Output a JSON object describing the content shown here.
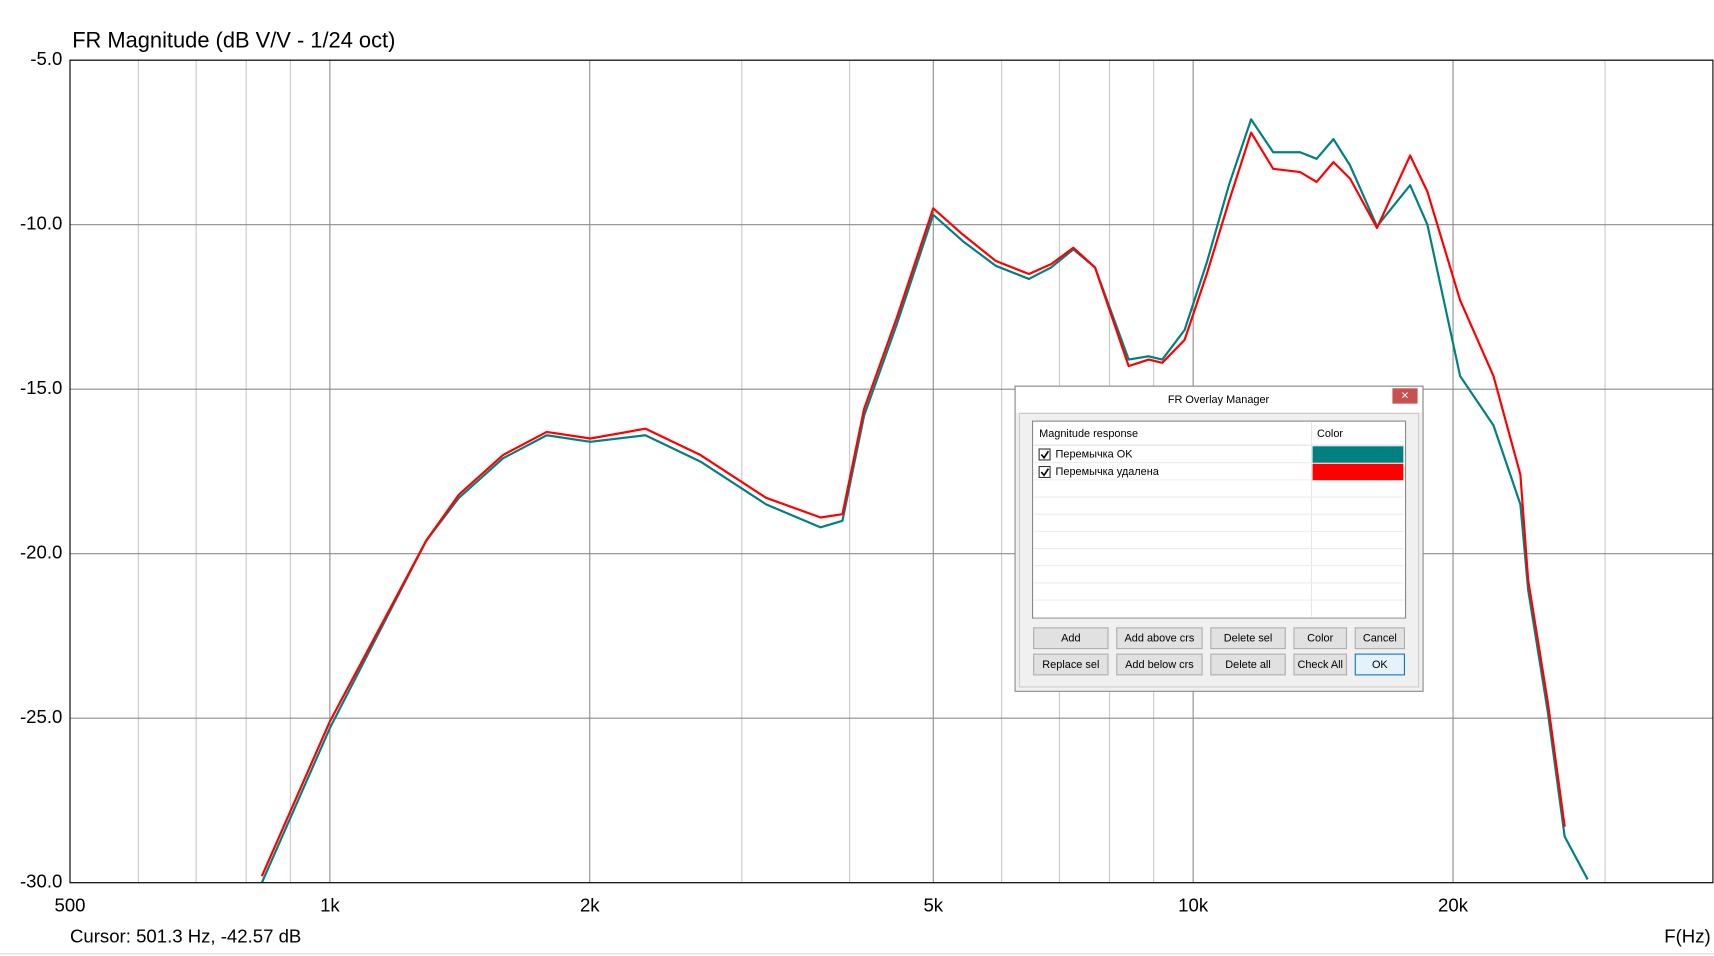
{
  "chart_data": {
    "type": "line",
    "title": "FR Magnitude (dB V/V - 1/24 oct)",
    "x_label": "F(Hz)",
    "cursor": "Cursor: 501.3 Hz, -42.57 dB",
    "log_x": true,
    "grid": true,
    "xlim": [
      500,
      40000
    ],
    "ylim": [
      -30,
      -5
    ],
    "xticks": [
      500,
      {
        "value": 1000,
        "label": "1k"
      },
      {
        "value": 2000,
        "label": "2k"
      },
      {
        "value": 5000,
        "label": "5k"
      },
      {
        "value": 10000,
        "label": "10k"
      },
      {
        "value": 20000,
        "label": "20k"
      }
    ],
    "xminorticks": [
      600,
      700,
      800,
      900,
      3000,
      4000,
      6000,
      7000,
      8000,
      9000,
      30000
    ],
    "yticks": [
      {
        "value": -5,
        "label": "-5.0"
      },
      {
        "value": -10,
        "label": "-10.0"
      },
      {
        "value": -15,
        "label": "-15.0"
      },
      {
        "value": -20,
        "label": "-20.0"
      },
      {
        "value": -25,
        "label": "-25.0"
      },
      {
        "value": -30,
        "label": "-30.0"
      }
    ],
    "x": [
      834,
      1000,
      1293,
      1411,
      1587,
      1783,
      2003,
      2320,
      2687,
      3201,
      3702,
      3924,
      4157,
      4541,
      5000,
      5409,
      5906,
      6454,
      6847,
      7264,
      7697,
      8421,
      8882,
      9210,
      9773,
      10370,
      11000,
      11670,
      12380,
      13300,
      13900,
      14540,
      15200,
      16330,
      17840,
      18680,
      20380,
      22280,
      23940,
      24440,
      25750,
      26940,
      28640
    ],
    "series": [
      {
        "name": "Перемычка OK",
        "color": "#008080",
        "values": [
          -30,
          -25.3,
          -19.6,
          -18.3,
          -17.1,
          -16.4,
          -16.6,
          -16.4,
          -17.2,
          -18.5,
          -19.2,
          -19.0,
          -15.8,
          -13.0,
          -9.7,
          -10.5,
          -11.25,
          -11.65,
          -11.3,
          -10.75,
          -11.3,
          -14.1,
          -14.0,
          -14.1,
          -13.2,
          -11.15,
          -8.8,
          -6.8,
          -7.8,
          -7.8,
          -8.0,
          -7.4,
          -8.2,
          -10.05,
          -8.8,
          -10.0,
          -14.6,
          -16.1,
          -18.5,
          -21.1,
          -24.8,
          -28.6,
          -29.9
        ]
      },
      {
        "name": "Перемычка удалена",
        "color": "#ff0000",
        "values": [
          -29.8,
          -25.1,
          -19.6,
          -18.2,
          -17.0,
          -16.3,
          -16.5,
          -16.2,
          -17.0,
          -18.3,
          -18.9,
          -18.8,
          -15.6,
          -12.8,
          -9.5,
          -10.3,
          -11.1,
          -11.5,
          -11.2,
          -10.7,
          -11.3,
          -14.3,
          -14.1,
          -14.2,
          -13.5,
          -11.5,
          -9.3,
          -7.2,
          -8.3,
          -8.4,
          -8.7,
          -8.1,
          -8.6,
          -10.1,
          -7.9,
          -9.0,
          -12.3,
          -14.6,
          -17.6,
          -20.8,
          -24.5,
          -28.3,
          null
        ]
      }
    ]
  },
  "dialog": {
    "title": "FR Overlay Manager",
    "close": "×",
    "columns": [
      "Magnitude response",
      "Color"
    ],
    "buttons": [
      [
        "Add",
        "Add above crs",
        "Delete sel",
        "Color",
        "Cancel"
      ],
      [
        "Replace sel",
        "Add below crs",
        "Delete all",
        "Check All",
        "OK"
      ]
    ]
  }
}
